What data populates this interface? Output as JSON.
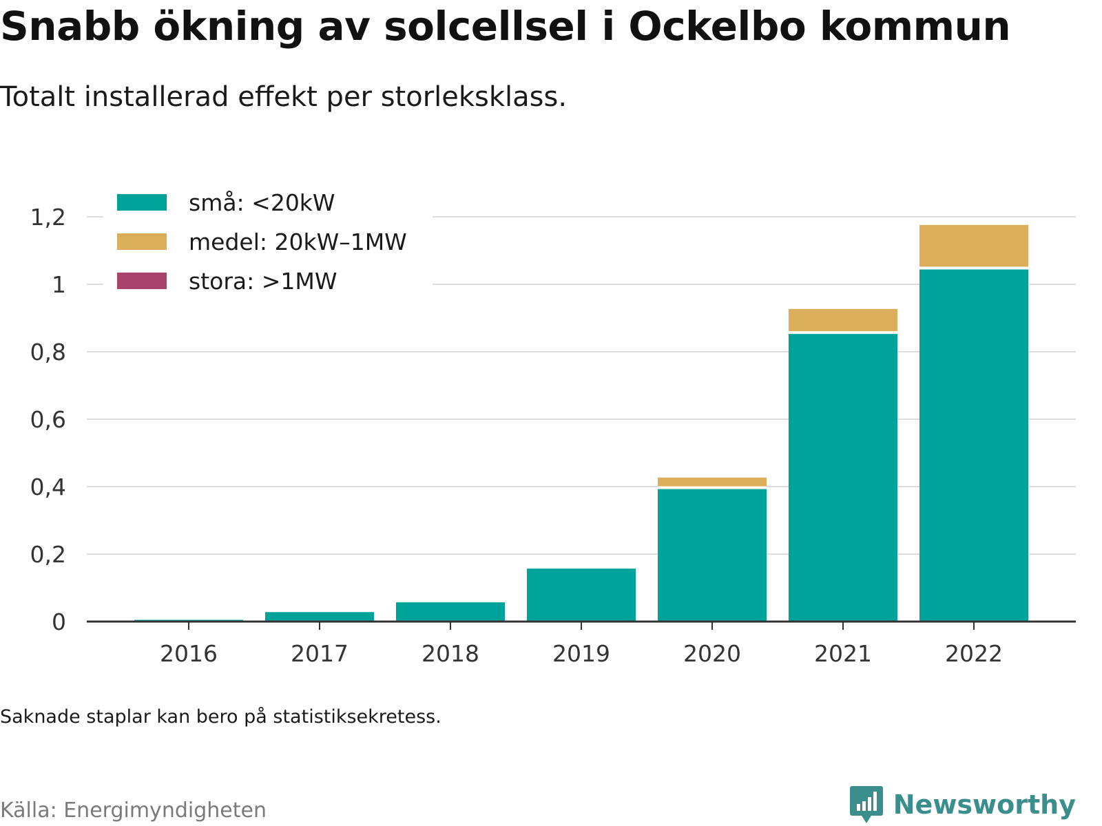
{
  "header": {
    "title": "Snabb ökning av solcellsel i Ockelbo kommun",
    "subtitle": "Totalt installerad effekt per storleksklass."
  },
  "footer": {
    "note": "Saknade staplar kan bero på statistiksekretess.",
    "source": "Källa: Energimyndigheten",
    "brand": "Newsworthy"
  },
  "colors": {
    "small": "#00a39a",
    "medium": "#dbae5c",
    "large": "#a8426a",
    "grid": "#dddddd",
    "axis": "#333333",
    "brand": "#3a8f8c"
  },
  "chart_data": {
    "type": "bar",
    "stacked": true,
    "categories": [
      "2016",
      "2017",
      "2018",
      "2019",
      "2020",
      "2021",
      "2022"
    ],
    "series": [
      {
        "name": "små: <20kW",
        "values": [
          0.005,
          0.028,
          0.057,
          0.157,
          0.397,
          0.857,
          1.048
        ]
      },
      {
        "name": "medel: 20kW–1MW",
        "values": [
          0,
          0,
          0,
          0,
          0.03,
          0.07,
          0.128
        ]
      },
      {
        "name": "stora: >1MW",
        "values": [
          0,
          0,
          0,
          0,
          0,
          0,
          0
        ]
      }
    ],
    "yticks": [
      0,
      0.2,
      0.4,
      0.6,
      0.8,
      1,
      1.2
    ],
    "ytick_labels": [
      "0",
      "0,2",
      "0,4",
      "0,6",
      "0,8",
      "1",
      "1,2"
    ],
    "ylim": [
      0,
      1.2
    ],
    "grid": true,
    "legend_position": "top-left"
  }
}
